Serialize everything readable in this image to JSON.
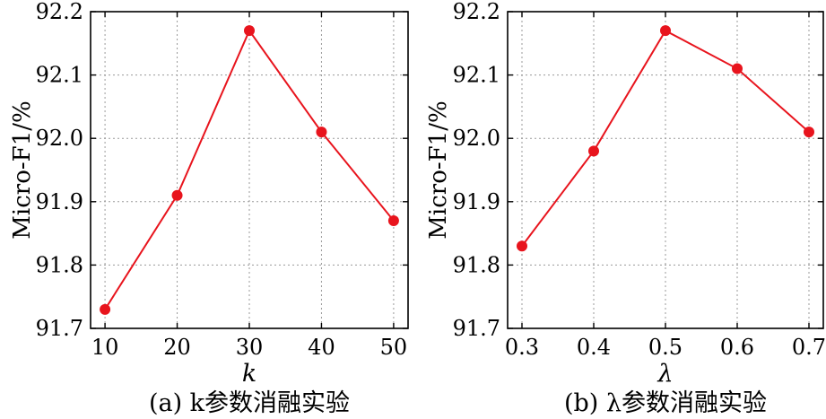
{
  "chart_data": [
    {
      "type": "line",
      "caption": "(a) k参数消融实验",
      "xlabel": "k",
      "ylabel": "Micro-F1/%",
      "x": [
        10,
        20,
        30,
        40,
        50
      ],
      "x_tick_labels": [
        "10",
        "20",
        "30",
        "40",
        "50"
      ],
      "xlim": [
        8,
        52
      ],
      "ylim": [
        91.7,
        92.2
      ],
      "y_ticks": [
        91.7,
        91.8,
        91.9,
        92.0,
        92.1,
        92.2
      ],
      "y_tick_labels": [
        "91.7",
        "91.8",
        "91.9",
        "92.0",
        "92.1",
        "92.2"
      ],
      "grid": true,
      "series": [
        {
          "values": [
            91.73,
            91.91,
            92.17,
            92.01,
            91.87
          ],
          "color": "#e8141d"
        }
      ]
    },
    {
      "type": "line",
      "caption": "(b) λ参数消融实验",
      "xlabel": "λ",
      "ylabel": "Micro-F1/%",
      "x": [
        0.3,
        0.4,
        0.5,
        0.6,
        0.7
      ],
      "x_tick_labels": [
        "0.3",
        "0.4",
        "0.5",
        "0.6",
        "0.7"
      ],
      "xlim": [
        0.28,
        0.72
      ],
      "ylim": [
        91.7,
        92.2
      ],
      "y_ticks": [
        91.7,
        91.8,
        91.9,
        92.0,
        92.1,
        92.2
      ],
      "y_tick_labels": [
        "91.7",
        "91.8",
        "91.9",
        "92.0",
        "92.1",
        "92.2"
      ],
      "grid": true,
      "series": [
        {
          "values": [
            91.83,
            91.98,
            92.17,
            92.11,
            92.01
          ],
          "color": "#e8141d"
        }
      ]
    }
  ]
}
